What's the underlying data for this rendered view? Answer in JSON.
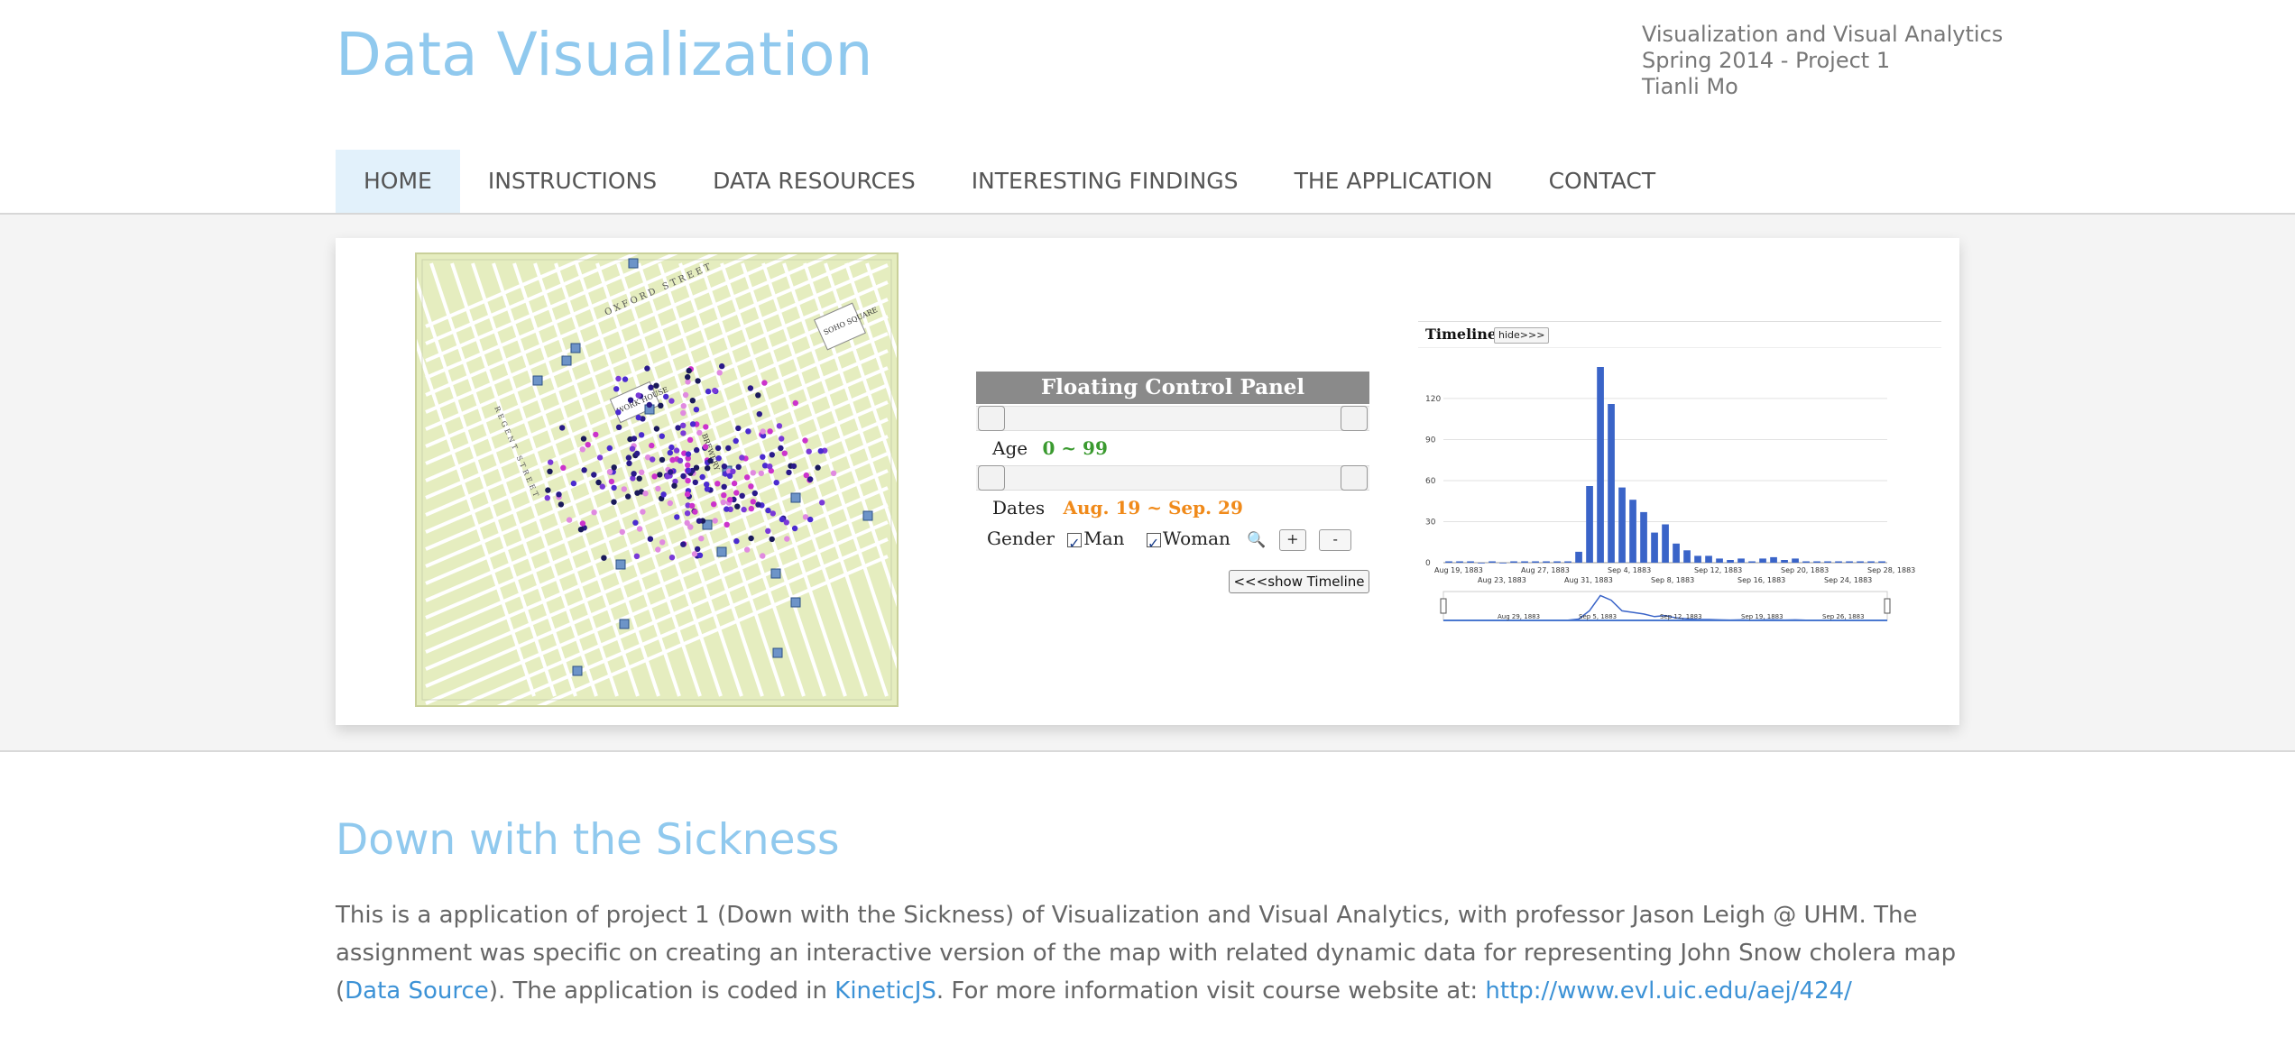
{
  "header": {
    "site_title": "Data Visualization",
    "course_lines": [
      "Visualization and Visual Analytics",
      "Spring 2014 - Project 1",
      "Tianli Mo"
    ]
  },
  "nav": {
    "items": [
      {
        "label": "HOME",
        "active": true
      },
      {
        "label": "INSTRUCTIONS"
      },
      {
        "label": "DATA RESOURCES"
      },
      {
        "label": "INTERESTING FINDINGS"
      },
      {
        "label": "THE APPLICATION"
      },
      {
        "label": "CONTACT"
      }
    ]
  },
  "banner": {
    "map_labels": {
      "street_top": "OXFORD STREET",
      "square": "SOHO SQUARE",
      "workhouse": "WORK HOUSE",
      "brewery": "BREWERY",
      "street_left": "REGENT STREET"
    },
    "control_panel": {
      "title": "Floating Control Panel",
      "age_label": "Age",
      "age_value": "0 ~ 99",
      "dates_label": "Dates",
      "dates_value": "Aug. 19 ~ Sep. 29",
      "gender_label": "Gender",
      "man_label": "Man",
      "woman_label": "Woman",
      "zoom_icon": "magnifier-icon",
      "plus_label": "+",
      "minus_label": "-",
      "show_timeline_label": "<<<show Timeline"
    },
    "timeline": {
      "title": "Timeline",
      "hide_label": "hide>>>"
    }
  },
  "chart_data": {
    "type": "bar",
    "title": "Timeline",
    "y_ticks": [
      0,
      30,
      60,
      90,
      120
    ],
    "ylim": [
      0,
      145
    ],
    "x_ticks_upper": [
      "Aug 19, 1883",
      "Aug 27, 1883",
      "Sep 4, 1883",
      "Sep 12, 1883",
      "Sep 20, 1883",
      "Sep 28, 1883"
    ],
    "x_ticks_lower": [
      "Aug 23, 1883",
      "Aug 31, 1883",
      "Sep 8, 1883",
      "Sep 16, 1883",
      "Sep 24, 1883"
    ],
    "overview_ticks": [
      "Aug 29, 1883",
      "Sep 5, 1883",
      "Sep 12, 1883",
      "Sep 19, 1883",
      "Sep 26, 1883"
    ],
    "values": [
      1,
      1,
      1,
      0,
      1,
      0,
      1,
      1,
      1,
      1,
      1,
      1,
      8,
      56,
      143,
      116,
      55,
      46,
      37,
      22,
      28,
      14,
      9,
      5,
      5,
      3,
      2,
      3,
      1,
      3,
      4,
      2,
      3,
      1,
      1,
      1,
      1,
      1,
      1,
      1,
      1
    ],
    "series_color": "#3a64c8"
  },
  "article": {
    "title": "Down with the Sickness",
    "text_1": "This is a application of project 1 (Down with the Sickness) of Visualization and Visual Analytics, with professor Jason Leigh @ UHM. The assignment was specific on creating an interactive version of the map with related dynamic data for representing John Snow cholera map (",
    "link_data_source": "Data Source",
    "text_2": "). The application is coded in ",
    "link_kinetic": "KineticJS",
    "text_3": ". For more information visit course website at: ",
    "link_course": "http://www.evl.uic.edu/aej/424/"
  }
}
